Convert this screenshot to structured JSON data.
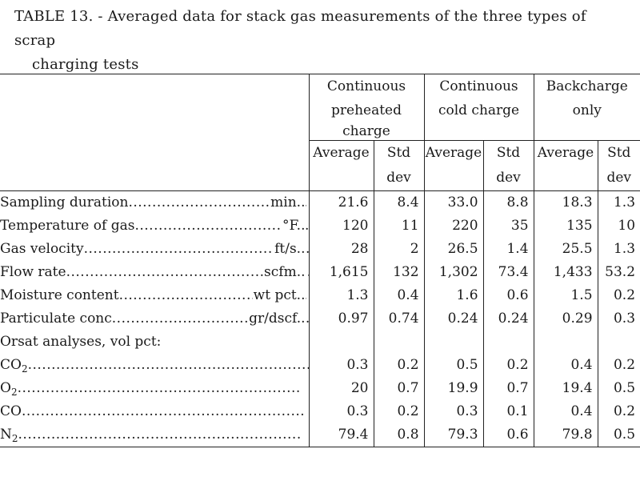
{
  "caption": {
    "line1": "TABLE 13. - Averaged data for stack gas measurements of the three types of scrap",
    "line2": "charging tests"
  },
  "groups": [
    {
      "line1": "Continuous",
      "line2": "preheated",
      "line3": "charge"
    },
    {
      "line1": "Continuous",
      "line2": "cold charge",
      "line3": ""
    },
    {
      "line1": "Backcharge",
      "line2": "only",
      "line3": ""
    }
  ],
  "subheads": {
    "average": "Average",
    "std_line1": "Std",
    "std_line2": "dev"
  },
  "rows": [
    {
      "label": "Sampling duration",
      "unit": "min..",
      "values": [
        "21.6",
        "8.4",
        "33.0",
        "8.8",
        "18.3",
        "1.3"
      ]
    },
    {
      "label": "Temperature of gas",
      "unit": "°F..",
      "values": [
        "120",
        "11",
        "220",
        "35",
        "135",
        "10"
      ]
    },
    {
      "label": "Gas velocity",
      "unit": "ft/s..",
      "values": [
        "28",
        "2",
        "26.5",
        "1.4",
        "25.5",
        "1.3"
      ]
    },
    {
      "label": "Flow rate",
      "unit": "scfm..",
      "values": [
        "1,615",
        "132",
        "1,302",
        "73.4",
        "1,433",
        "53.2"
      ]
    },
    {
      "label": "Moisture content",
      "unit": "wt pct..",
      "values": [
        "1.3",
        "0.4",
        "1.6",
        "0.6",
        "1.5",
        "0.2"
      ]
    },
    {
      "label": "Particulate conc",
      "unit": "gr/dscf..",
      "values": [
        "0.97",
        "0.74",
        "0.24",
        "0.24",
        "0.29",
        "0.3"
      ]
    }
  ],
  "orsat": {
    "heading": "Orsat analyses, vol pct:",
    "rows": [
      {
        "label": "CO",
        "sub": "2",
        "values": [
          "0.3",
          "0.2",
          "0.5",
          "0.2",
          "0.4",
          "0.2"
        ]
      },
      {
        "label": "O",
        "sub": "2",
        "values": [
          "20",
          "0.7",
          "19.9",
          "0.7",
          "19.4",
          "0.5"
        ]
      },
      {
        "label": "CO",
        "sub": "",
        "values": [
          "0.3",
          "0.2",
          "0.3",
          "0.1",
          "0.4",
          "0.2"
        ]
      },
      {
        "label": "N",
        "sub": "2",
        "values": [
          "79.4",
          "0.8",
          "79.3",
          "0.6",
          "79.8",
          "0.5"
        ]
      }
    ]
  }
}
